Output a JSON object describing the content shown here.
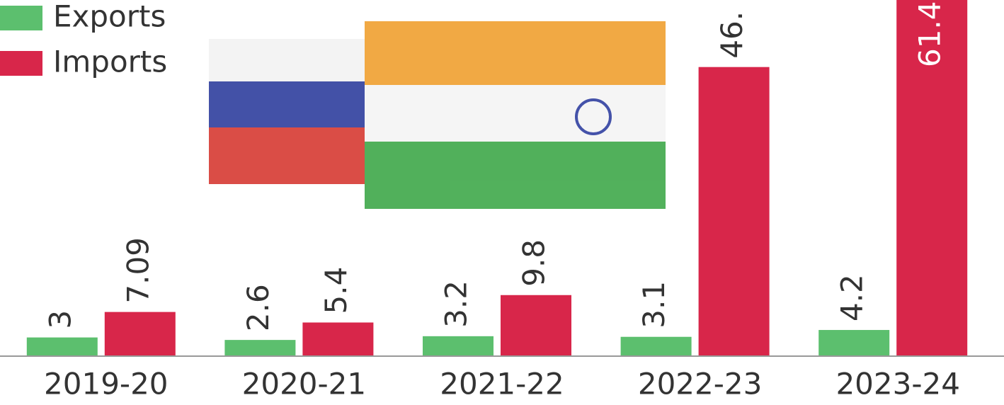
{
  "chart_data": {
    "type": "bar",
    "categories": [
      "2019-20",
      "2020-21",
      "2021-22",
      "2022-23",
      "2023-24"
    ],
    "series": [
      {
        "name": "Exports",
        "color": "#5cbf6e",
        "values": [
          3,
          2.6,
          3.2,
          3.1,
          4.2
        ]
      },
      {
        "name": "Imports",
        "color": "#d8264a",
        "values": [
          7.09,
          5.4,
          9.8,
          46.4,
          61.4
        ],
        "value_labels": [
          "7.09",
          "5.4",
          "9.8",
          "46.",
          "61.4"
        ]
      }
    ],
    "ylim": [
      0,
      65
    ]
  }
}
